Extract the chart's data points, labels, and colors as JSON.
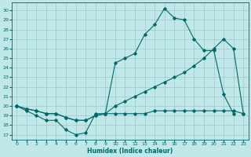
{
  "xlabel": "Humidex (Indice chaleur)",
  "bg_color": "#c0e8e8",
  "grid_color": "#98c8c8",
  "line_color": "#006868",
  "xlim": [
    -0.5,
    23.5
  ],
  "ylim": [
    16.5,
    30.8
  ],
  "xticks": [
    0,
    1,
    2,
    3,
    4,
    5,
    6,
    7,
    8,
    9,
    10,
    11,
    12,
    13,
    14,
    15,
    16,
    17,
    18,
    19,
    20,
    21,
    22,
    23
  ],
  "yticks": [
    17,
    18,
    19,
    20,
    21,
    22,
    23,
    24,
    25,
    26,
    27,
    28,
    29,
    30
  ],
  "line1_x": [
    0,
    1,
    2,
    3,
    4,
    5,
    6,
    7,
    8,
    9,
    10,
    11,
    12,
    13,
    14,
    15,
    16,
    17,
    18,
    19,
    20,
    21,
    22,
    23
  ],
  "line1_y": [
    20.0,
    19.5,
    19.0,
    18.5,
    18.5,
    17.5,
    17.0,
    17.2,
    19.2,
    19.2,
    24.5,
    25.0,
    25.5,
    27.5,
    28.5,
    30.2,
    29.2,
    29.0,
    27.0,
    25.8,
    25.8,
    21.2,
    19.2,
    null
  ],
  "line2_x": [
    0,
    1,
    2,
    3,
    4,
    5,
    6,
    7,
    8,
    9,
    10,
    11,
    12,
    13,
    14,
    15,
    16,
    17,
    18,
    19,
    20,
    21,
    22,
    23
  ],
  "line2_y": [
    20.0,
    19.7,
    19.5,
    19.2,
    19.2,
    18.8,
    18.5,
    18.5,
    19.0,
    19.2,
    20.0,
    20.5,
    21.0,
    21.5,
    22.0,
    22.5,
    23.0,
    23.5,
    24.2,
    25.0,
    26.0,
    27.0,
    26.0,
    19.2
  ],
  "line3_x": [
    0,
    1,
    2,
    3,
    4,
    5,
    6,
    7,
    8,
    9,
    10,
    11,
    12,
    13,
    14,
    15,
    16,
    17,
    18,
    19,
    20,
    21,
    22,
    23
  ],
  "line3_y": [
    20.0,
    19.7,
    19.5,
    19.2,
    19.2,
    18.8,
    18.5,
    18.5,
    19.0,
    19.2,
    19.2,
    19.2,
    19.2,
    19.2,
    19.5,
    19.5,
    19.5,
    19.5,
    19.5,
    19.5,
    19.5,
    19.5,
    19.5,
    19.2
  ]
}
